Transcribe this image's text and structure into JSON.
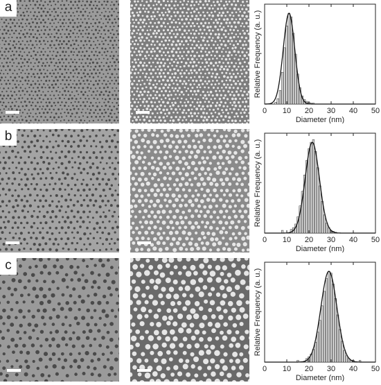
{
  "panels": [
    {
      "letter": "a",
      "left_tone": "#9b9b9b",
      "right_tone": "#7d7d7d"
    },
    {
      "letter": "b",
      "left_tone": "#a4a4a4",
      "right_tone": "#8a8a8a"
    },
    {
      "letter": "c",
      "left_tone": "#9a9a9a",
      "right_tone": "#6a6a6a"
    }
  ],
  "chart_data": [
    {
      "type": "bar",
      "panel": "a",
      "xlabel": "Diameter (nm)",
      "ylabel": "Relative Frequency (a. u.)",
      "xlim": [
        0,
        50
      ],
      "x_ticks": [
        "0",
        "10",
        "20",
        "30",
        "40",
        "50"
      ],
      "fit": {
        "kind": "gaussian",
        "mean": 11,
        "sigma": 2.6
      },
      "x": [
        5,
        6,
        7,
        8,
        9,
        10,
        11,
        12,
        13,
        14,
        15,
        16,
        17,
        18,
        19,
        20,
        21,
        22
      ],
      "values": [
        0.02,
        0.06,
        0.15,
        0.35,
        0.62,
        0.86,
        1.0,
        0.96,
        0.78,
        0.55,
        0.33,
        0.18,
        0.09,
        0.05,
        0.03,
        0.02,
        0.01,
        0.01
      ]
    },
    {
      "type": "bar",
      "panel": "b",
      "xlabel": "Diameter (nm)",
      "ylabel": "Relative Frequency (a. u.)",
      "xlim": [
        0,
        50
      ],
      "x_ticks": [
        "0",
        "10",
        "20",
        "30",
        "40",
        "50"
      ],
      "fit": {
        "kind": "gaussian",
        "mean": 21.5,
        "sigma": 3.2
      },
      "x": [
        8,
        12,
        13,
        14,
        15,
        16,
        17,
        18,
        19,
        20,
        21,
        22,
        23,
        24,
        25,
        26,
        27,
        28,
        29,
        30,
        31,
        32
      ],
      "values": [
        0.03,
        0.04,
        0.06,
        0.1,
        0.18,
        0.3,
        0.46,
        0.64,
        0.8,
        0.93,
        1.0,
        1.03,
        0.9,
        0.72,
        0.52,
        0.35,
        0.2,
        0.11,
        0.06,
        0.03,
        0.02,
        0.01
      ]
    },
    {
      "type": "bar",
      "panel": "c",
      "xlabel": "Diameter (nm)",
      "ylabel": "Relative Frequency (a. u.)",
      "xlim": [
        0,
        50
      ],
      "x_ticks": [
        "0",
        "10",
        "20",
        "30",
        "40",
        "50"
      ],
      "fit": {
        "kind": "gaussian",
        "mean": 29,
        "sigma": 3.6
      },
      "x": [
        15,
        19,
        20,
        21,
        22,
        23,
        24,
        25,
        26,
        27,
        28,
        29,
        30,
        31,
        32,
        33,
        34,
        35,
        36,
        37,
        38,
        39,
        40,
        43
      ],
      "values": [
        0.02,
        0.04,
        0.06,
        0.09,
        0.14,
        0.22,
        0.33,
        0.46,
        0.62,
        0.78,
        0.92,
        1.0,
        0.98,
        0.86,
        0.7,
        0.52,
        0.36,
        0.23,
        0.13,
        0.07,
        0.04,
        0.02,
        0.02,
        0.02
      ]
    }
  ]
}
